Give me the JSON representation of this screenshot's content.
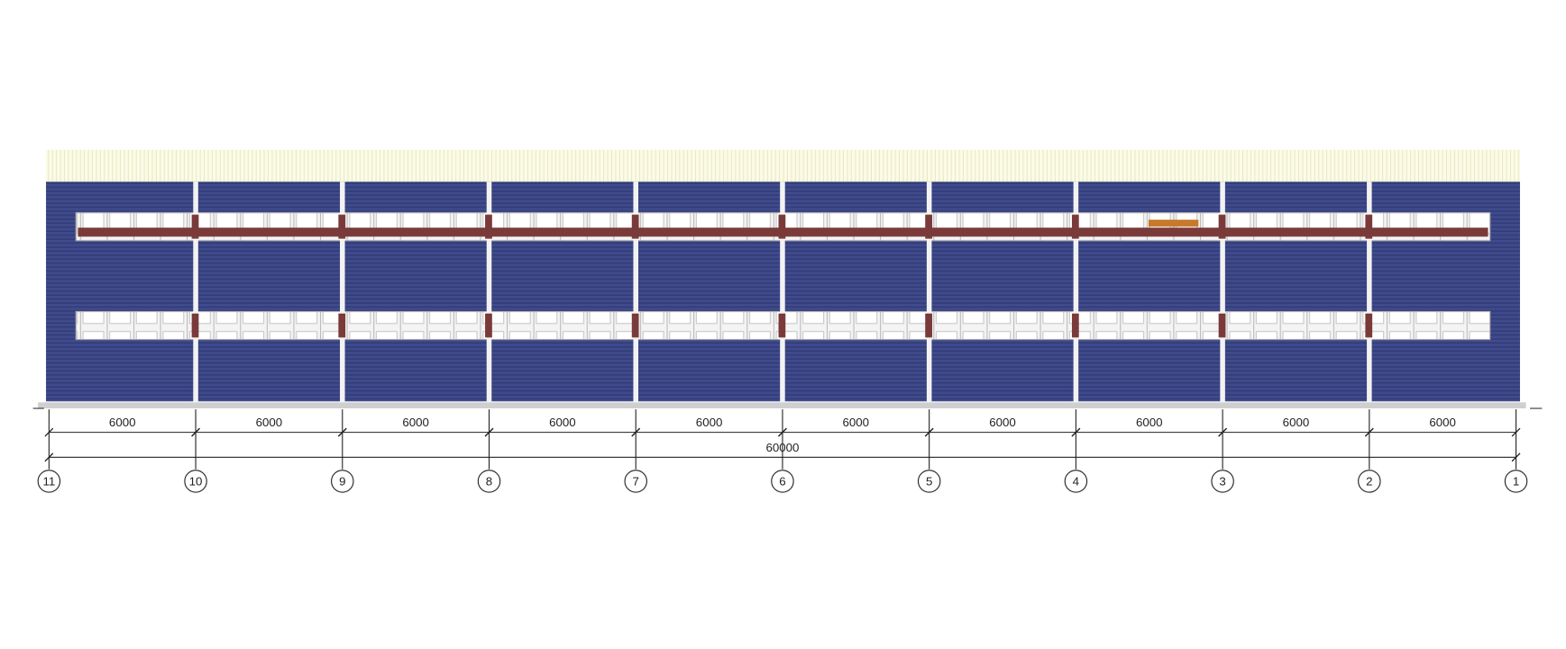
{
  "drawing": {
    "axes": [
      "11",
      "10",
      "9",
      "8",
      "7",
      "6",
      "5",
      "4",
      "3",
      "2",
      "1"
    ],
    "spans": [
      6000,
      6000,
      6000,
      6000,
      6000,
      6000,
      6000,
      6000,
      6000,
      6000
    ],
    "total": 60000
  }
}
